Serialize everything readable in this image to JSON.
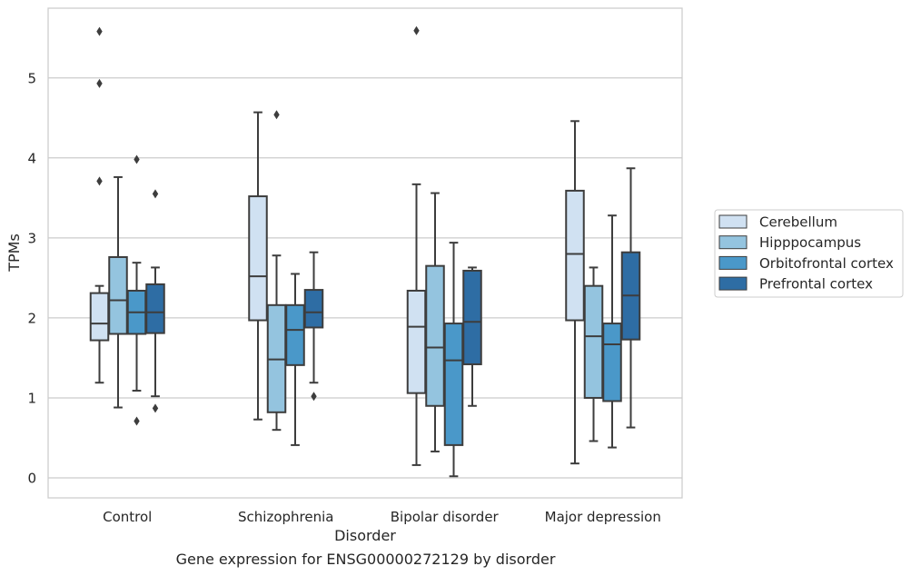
{
  "chart_data": {
    "type": "box",
    "title": "",
    "xlabel": "Disorder",
    "ylabel": "TPMs",
    "caption": "Gene expression for ENSG00000272129 by disorder",
    "ylim": [
      -0.25,
      5.9
    ],
    "yticks": [
      0,
      1,
      2,
      3,
      4,
      5
    ],
    "grid": "horizontal",
    "legend_position": "right",
    "categories": [
      "Control",
      "Schizophrenia",
      "Bipolar disorder",
      "Major depression"
    ],
    "series": [
      {
        "name": "Cerebellum",
        "color": "#d0e1f2",
        "boxes": [
          {
            "whisker_low": 1.19,
            "q1": 1.72,
            "median": 1.93,
            "q3": 2.31,
            "whisker_high": 2.4,
            "outliers": [
              3.71,
              4.93,
              5.58
            ]
          },
          {
            "whisker_low": 0.73,
            "q1": 1.97,
            "median": 2.52,
            "q3": 3.52,
            "whisker_high": 4.57,
            "outliers": []
          },
          {
            "whisker_low": 0.16,
            "q1": 1.06,
            "median": 1.89,
            "q3": 2.34,
            "whisker_high": 3.67,
            "outliers": [
              5.59
            ]
          },
          {
            "whisker_low": 0.18,
            "q1": 1.97,
            "median": 2.8,
            "q3": 3.59,
            "whisker_high": 4.46,
            "outliers": []
          }
        ]
      },
      {
        "name": "Hipppocampus",
        "color": "#94c4df",
        "boxes": [
          {
            "whisker_low": 0.88,
            "q1": 1.8,
            "median": 2.22,
            "q3": 2.76,
            "whisker_high": 3.76,
            "outliers": []
          },
          {
            "whisker_low": 0.6,
            "q1": 0.82,
            "median": 1.48,
            "q3": 2.16,
            "whisker_high": 2.78,
            "outliers": [
              4.54
            ]
          },
          {
            "whisker_low": 0.33,
            "q1": 0.9,
            "median": 1.63,
            "q3": 2.65,
            "whisker_high": 3.56,
            "outliers": []
          },
          {
            "whisker_low": 0.46,
            "q1": 1.0,
            "median": 1.77,
            "q3": 2.4,
            "whisker_high": 2.63,
            "outliers": []
          }
        ]
      },
      {
        "name": "Orbitofrontal cortex",
        "color": "#4a98c9",
        "boxes": [
          {
            "whisker_low": 1.09,
            "q1": 1.8,
            "median": 2.07,
            "q3": 2.34,
            "whisker_high": 2.69,
            "outliers": [
              0.71,
              3.98
            ]
          },
          {
            "whisker_low": 0.41,
            "q1": 1.41,
            "median": 1.85,
            "q3": 2.16,
            "whisker_high": 2.55,
            "outliers": []
          },
          {
            "whisker_low": 0.02,
            "q1": 0.41,
            "median": 1.47,
            "q3": 1.93,
            "whisker_high": 2.94,
            "outliers": []
          },
          {
            "whisker_low": 0.38,
            "q1": 0.96,
            "median": 1.67,
            "q3": 1.93,
            "whisker_high": 3.28,
            "outliers": []
          }
        ]
      },
      {
        "name": "Prefrontal cortex",
        "color": "#2e6da4",
        "boxes": [
          {
            "whisker_low": 1.02,
            "q1": 1.81,
            "median": 2.07,
            "q3": 2.42,
            "whisker_high": 2.63,
            "outliers": [
              0.87,
              3.55
            ]
          },
          {
            "whisker_low": 1.19,
            "q1": 1.88,
            "median": 2.07,
            "q3": 2.35,
            "whisker_high": 2.82,
            "outliers": [
              1.02
            ]
          },
          {
            "whisker_low": 0.9,
            "q1": 1.42,
            "median": 1.95,
            "q3": 2.59,
            "whisker_high": 2.63,
            "outliers": []
          },
          {
            "whisker_low": 0.63,
            "q1": 1.73,
            "median": 2.28,
            "q3": 2.82,
            "whisker_high": 3.87,
            "outliers": []
          }
        ]
      }
    ]
  }
}
